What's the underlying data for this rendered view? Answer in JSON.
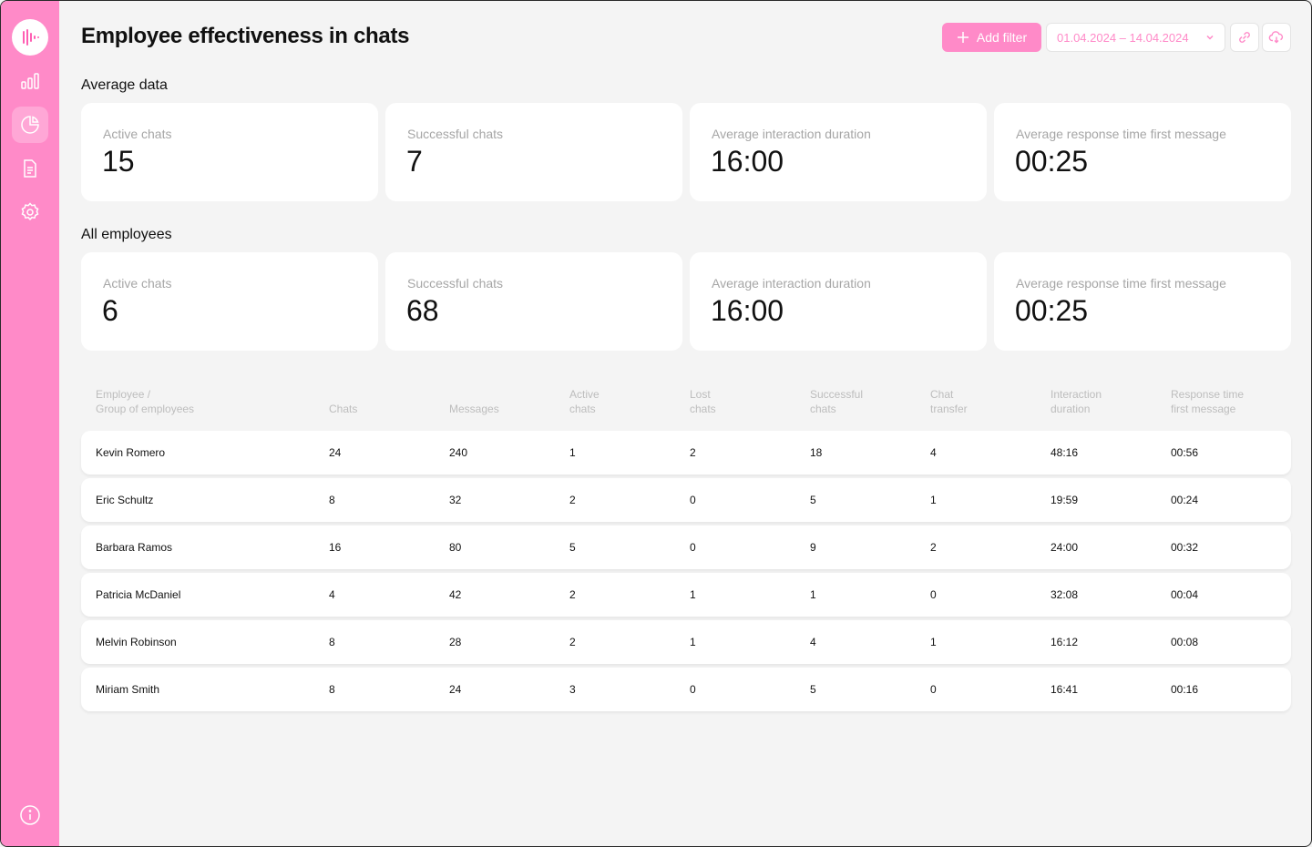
{
  "page": {
    "title": "Employee effectiveness in chats"
  },
  "colors": {
    "accent": "#ff8ac8",
    "background": "#f4f4f4",
    "card": "#ffffff",
    "muted_text": "#a6a6a6"
  },
  "sidebar": {
    "items": [
      {
        "icon": "bar-chart-icon",
        "active": false
      },
      {
        "icon": "pie-chart-icon",
        "active": true
      },
      {
        "icon": "document-icon",
        "active": false
      },
      {
        "icon": "gear-icon",
        "active": false
      }
    ],
    "footer_icon": "info-icon"
  },
  "toolbar": {
    "add_filter_label": "Add filter",
    "date_range": "01.04.2024 – 14.04.2024",
    "link_icon": "link-icon",
    "download_icon": "cloud-download-icon"
  },
  "average": {
    "heading": "Average data",
    "cards": [
      {
        "label": "Active chats",
        "value": "15"
      },
      {
        "label": "Successful chats",
        "value": "7"
      },
      {
        "label": "Average interaction duration",
        "value": "16:00"
      },
      {
        "label": "Average response time first message",
        "value": "00:25"
      }
    ]
  },
  "all_employees": {
    "heading": "All employees",
    "cards": [
      {
        "label": "Active chats",
        "value": "6"
      },
      {
        "label": "Successful chats",
        "value": "68"
      },
      {
        "label": "Average interaction duration",
        "value": "16:00"
      },
      {
        "label": "Average response time first message",
        "value": "00:25"
      }
    ]
  },
  "table": {
    "headers": [
      "Employee /\nGroup of employees",
      "Chats",
      "Messages",
      "Active\nchats",
      "Lost\nchats",
      "Successful\nchats",
      "Chat\ntransfer",
      "Interaction\nduration",
      "Response time\nfirst message"
    ],
    "rows": [
      [
        "Kevin Romero",
        "24",
        "240",
        "1",
        "2",
        "18",
        "4",
        "48:16",
        "00:56"
      ],
      [
        "Eric Schultz",
        "8",
        "32",
        "2",
        "0",
        "5",
        "1",
        "19:59",
        "00:24"
      ],
      [
        "Barbara Ramos",
        "16",
        "80",
        "5",
        "0",
        "9",
        "2",
        "24:00",
        "00:32"
      ],
      [
        "Patricia McDaniel",
        "4",
        "42",
        "2",
        "1",
        "1",
        "0",
        "32:08",
        "00:04"
      ],
      [
        "Melvin Robinson",
        "8",
        "28",
        "2",
        "1",
        "4",
        "1",
        "16:12",
        "00:08"
      ],
      [
        "Miriam Smith",
        "8",
        "24",
        "3",
        "0",
        "5",
        "0",
        "16:41",
        "00:16"
      ]
    ]
  }
}
